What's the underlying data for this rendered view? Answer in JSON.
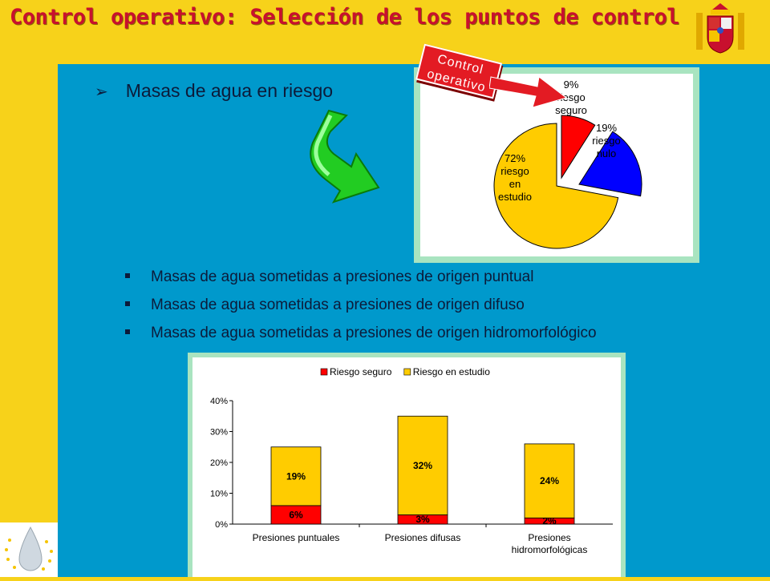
{
  "header": {
    "title": "Control operativo: Selección de los puntos de control"
  },
  "main": {
    "bullet": "Masas de agua en riesgo",
    "badge_line1": "Control",
    "badge_line2": "operativo",
    "sub_items": [
      "Masas de agua sometidas a presiones de origen puntual",
      "Masas de agua sometidas a presiones de origen difuso",
      "Masas de agua sometidas a presiones de origen hidromorfológico"
    ]
  },
  "chart_data": [
    {
      "type": "pie",
      "slices": [
        {
          "value": 9,
          "label_lines": [
            "9%",
            "riesgo",
            "seguro"
          ],
          "color": "#ff0000"
        },
        {
          "value": 19,
          "label_lines": [
            "19%",
            "riesgo",
            "nulo"
          ],
          "color": "#0000ff"
        },
        {
          "value": 72,
          "label_lines": [
            "72%",
            "riesgo",
            "en",
            "estudio"
          ],
          "color": "#ffcc00"
        }
      ]
    },
    {
      "type": "bar",
      "stacked": true,
      "categories": [
        "Presiones puntuales",
        "Presiones difusas",
        "Presiones hidromorfológicas"
      ],
      "category_lines": [
        [
          "Presiones puntuales"
        ],
        [
          "Presiones difusas"
        ],
        [
          "Presiones",
          "hidromorfológicas"
        ]
      ],
      "series": [
        {
          "name": "Riesgo seguro",
          "values": [
            6,
            3,
            2
          ],
          "labels": [
            "6%",
            "3%",
            "2%"
          ],
          "color": "#ff0000"
        },
        {
          "name": "Riesgo en estudio",
          "values": [
            19,
            32,
            24
          ],
          "labels": [
            "19%",
            "32%",
            "24%"
          ],
          "color": "#ffcc00"
        }
      ],
      "y_ticks": [
        "0%",
        "10%",
        "20%",
        "30%",
        "40%"
      ],
      "ylim": [
        0,
        40
      ],
      "legend": "top"
    }
  ]
}
